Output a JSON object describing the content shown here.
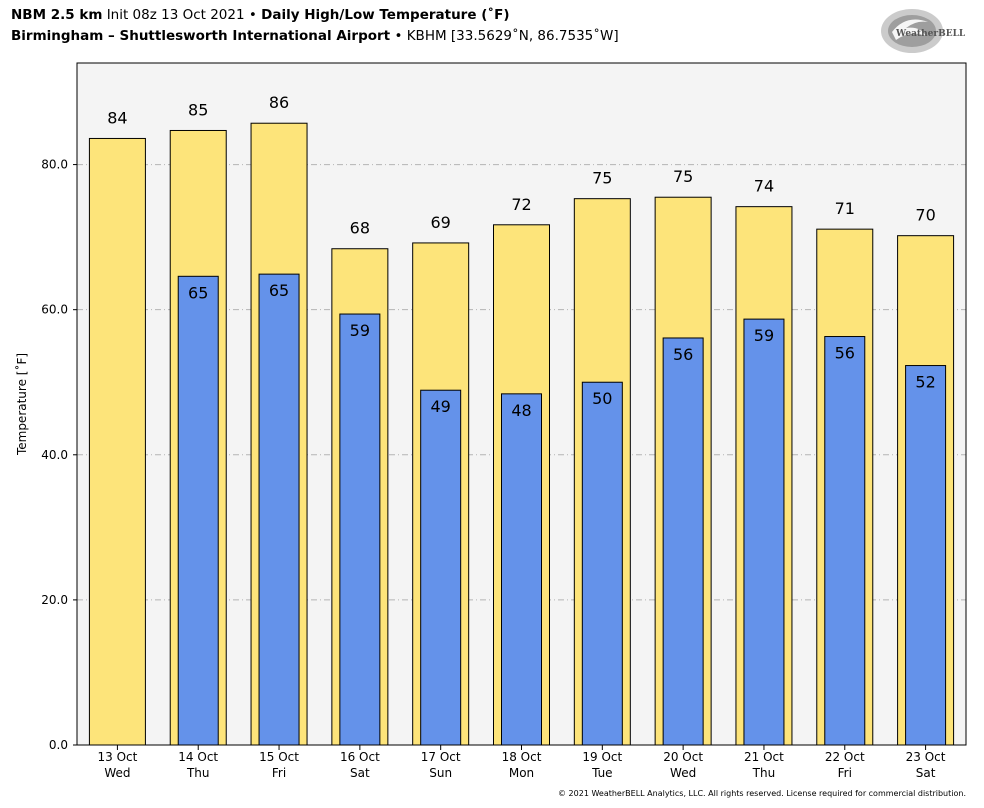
{
  "header": {
    "model": "NBM 2.5 km",
    "init": "Init 08z 13 Oct 2021",
    "bullet": "•",
    "product": "Daily High/Low Temperature (˚F)",
    "location": "Birmingham – Shuttlesworth International Airport",
    "station": "KBHM [33.5629˚N, 86.7535˚W]"
  },
  "logo": {
    "text": "WeatherBELL",
    "icon": "weatherbell-swirl-logo"
  },
  "copyright": "© 2021 WeatherBELL Analytics, LLC. All rights reserved. License required for commercial distribution.",
  "colors": {
    "high": "#fde47a",
    "low": "#6492ea",
    "plot_bg": "#f4f4f4",
    "grid": "#b4b4b4"
  },
  "chart_data": {
    "type": "bar",
    "ylabel": "Temperature [˚F]",
    "ylim": [
      0,
      94
    ],
    "yticks": [
      0,
      20,
      40,
      60,
      80
    ],
    "ytick_labels": [
      "0.0",
      "20.0",
      "40.0",
      "60.0",
      "80.0"
    ],
    "grid": true,
    "categories": [
      [
        "13 Oct",
        "Wed"
      ],
      [
        "14 Oct",
        "Thu"
      ],
      [
        "15 Oct",
        "Fri"
      ],
      [
        "16 Oct",
        "Sat"
      ],
      [
        "17 Oct",
        "Sun"
      ],
      [
        "18 Oct",
        "Mon"
      ],
      [
        "19 Oct",
        "Tue"
      ],
      [
        "20 Oct",
        "Wed"
      ],
      [
        "21 Oct",
        "Thu"
      ],
      [
        "22 Oct",
        "Fri"
      ],
      [
        "23 Oct",
        "Sat"
      ]
    ],
    "series": [
      {
        "values": [
          83.6,
          84.7,
          85.7,
          68.4,
          69.2,
          71.7,
          75.3,
          75.5,
          74.2,
          71.1,
          70.2
        ],
        "labels": [
          "84",
          "85",
          "86",
          "68",
          "69",
          "72",
          "75",
          "75",
          "74",
          "71",
          "70"
        ]
      },
      {
        "values": [
          null,
          64.6,
          64.9,
          59.4,
          48.9,
          48.4,
          50.0,
          56.1,
          58.7,
          56.3,
          52.3
        ],
        "labels": [
          "",
          "65",
          "65",
          "59",
          "49",
          "48",
          "50",
          "56",
          "59",
          "56",
          "52"
        ]
      }
    ]
  }
}
